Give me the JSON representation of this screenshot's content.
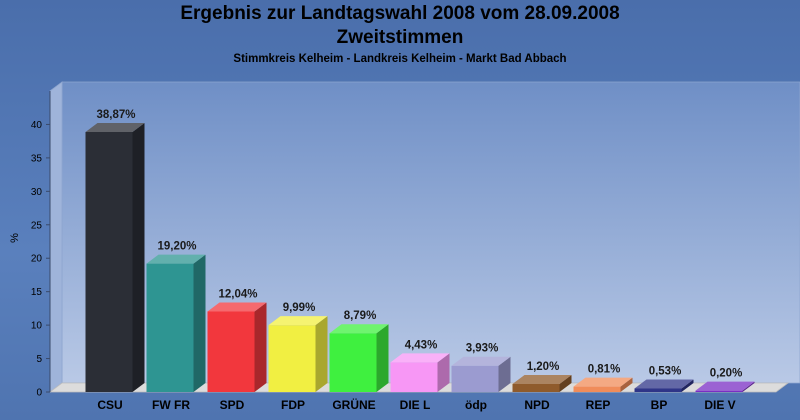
{
  "header": {
    "title": "Ergebnis zur Landtagswahl 2008 vom 28.09.2008",
    "subtitle": "Zweitstimmen",
    "caption": "Stimmkreis Kelheim - Landkreis Kelheim - Markt Bad Abbach"
  },
  "chart_data": {
    "type": "bar",
    "title": "Ergebnis zur Landtagswahl 2008 vom 28.09.2008",
    "subtitle": "Zweitstimmen",
    "ylabel": "%",
    "xlabel": "",
    "ylim": [
      0,
      45
    ],
    "yticks": [
      0,
      5,
      10,
      15,
      20,
      25,
      30,
      35,
      40
    ],
    "grid": false,
    "categories": [
      "CSU",
      "FW FR",
      "SPD",
      "FDP",
      "GRÜNE",
      "DIE L",
      "ödp",
      "NPD",
      "REP",
      "BP",
      "DIE V"
    ],
    "values": [
      38.87,
      19.2,
      12.04,
      9.99,
      8.79,
      4.43,
      3.93,
      1.2,
      0.81,
      0.53,
      0.2
    ],
    "value_labels": [
      "38,87%",
      "19,20%",
      "12,04%",
      "9,99%",
      "8,79%",
      "4,43%",
      "3,93%",
      "1,20%",
      "0,81%",
      "0,53%",
      "0,20%"
    ],
    "colors": [
      "#2b2e36",
      "#2e9592",
      "#f2373d",
      "#f1ef42",
      "#3ff03f",
      "#f797f5",
      "#9b9bd0",
      "#8f5b2c",
      "#f08c5a",
      "#2f3588",
      "#7a2ec4"
    ]
  }
}
